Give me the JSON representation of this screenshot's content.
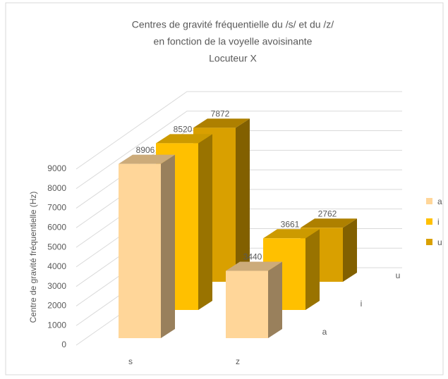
{
  "chart_data": {
    "type": "bar3d",
    "title_lines": [
      "Centres de gravité fréquentielle du /s/ et du /z/",
      "en fonction de la voyelle avoisinante",
      "Locuteur X"
    ],
    "y_label": "Centre de gravité fréquentielle (Hz)",
    "categories": [
      "s",
      "z"
    ],
    "series": [
      {
        "name": "a",
        "color": "#FFD699",
        "values": [
          8906,
          3440
        ]
      },
      {
        "name": "i",
        "color": "#FFC000",
        "values": [
          8520,
          3661
        ]
      },
      {
        "name": "u",
        "color": "#D9A000",
        "values": [
          7872,
          2762
        ]
      }
    ],
    "ylim": [
      0,
      9000
    ],
    "yticks": [
      0,
      1000,
      2000,
      3000,
      4000,
      5000,
      6000,
      7000,
      8000,
      9000
    ],
    "grid": true,
    "legend": "right"
  }
}
